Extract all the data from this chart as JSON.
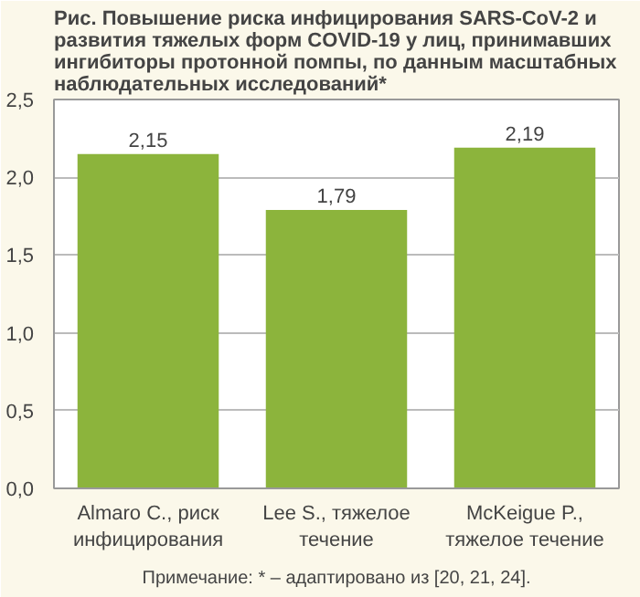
{
  "chart_data": {
    "type": "bar",
    "title": "Рис. Повышение риска инфицирования SARS-CoV-2 и развития тяжелых форм COVID-19 у лиц, принимавших ингибиторы протонной помпы, по данным масштабных наблюдательных исследований*",
    "categories": [
      "Almaro C., риск инфицирования",
      "Lee S., тяжелое течение",
      "McKeigue P., тяжелое течение"
    ],
    "values": [
      2.15,
      1.79,
      2.19
    ],
    "value_labels": [
      "2,15",
      "1,79",
      "2,19"
    ],
    "color": "#8cb43c",
    "ylim": [
      0,
      2.5
    ],
    "yticks": [
      {
        "value": 0,
        "label": "0,0"
      },
      {
        "value": 0.5,
        "label": "0,5"
      },
      {
        "value": 1,
        "label": "1,0"
      },
      {
        "value": 1.5,
        "label": "1,5"
      },
      {
        "value": 2,
        "label": "2,0"
      },
      {
        "value": 2.5,
        "label": "2,5"
      }
    ],
    "grid": "y",
    "annotations": [
      "Примечание: * – адаптировано из [20, 21, 24]."
    ]
  }
}
